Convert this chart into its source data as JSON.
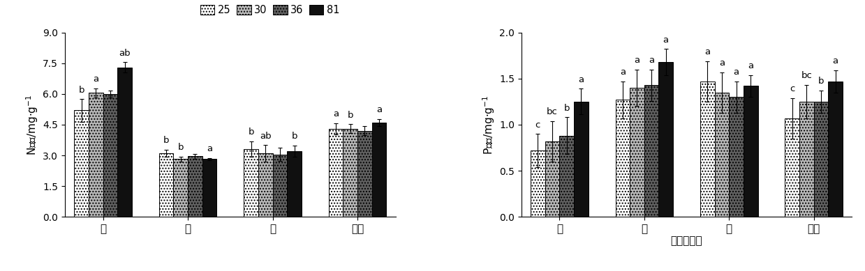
{
  "left_chart": {
    "ylabel": "N浓度/mg·g-1",
    "ylim": [
      0.0,
      9.0
    ],
    "yticks": [
      0.0,
      1.5,
      3.0,
      4.5,
      6.0,
      7.5,
      9.0
    ],
    "categories": [
      "叶",
      "茎",
      "根",
      "单株"
    ],
    "series_labels": [
      "25",
      "30",
      "36",
      "81"
    ],
    "values": [
      [
        5.2,
        3.1,
        3.3,
        4.3
      ],
      [
        6.05,
        2.82,
        3.1,
        4.3
      ],
      [
        6.0,
        2.95,
        3.05,
        4.2
      ],
      [
        7.3,
        2.82,
        3.2,
        4.6
      ]
    ],
    "errors": [
      [
        0.55,
        0.18,
        0.38,
        0.28
      ],
      [
        0.22,
        0.12,
        0.4,
        0.22
      ],
      [
        0.18,
        0.12,
        0.32,
        0.22
      ],
      [
        0.25,
        0.06,
        0.28,
        0.18
      ]
    ],
    "sig_labels": [
      [
        "b",
        "a",
        "",
        "ab"
      ],
      [
        "b",
        "b",
        "",
        "a"
      ],
      [
        "b",
        "ab",
        "",
        "b"
      ],
      [
        "a",
        "b",
        "",
        "a"
      ]
    ],
    "sig_labels_per_group": [
      [
        "b",
        "b",
        "b",
        "a"
      ],
      [
        "a",
        "b",
        "ab",
        "b"
      ],
      [
        "",
        "",
        "",
        ""
      ],
      [
        "ab",
        "a",
        "b",
        "a"
      ]
    ]
  },
  "right_chart": {
    "ylabel": "P浓度/mg·g-1",
    "xlabel": "容器苗部位",
    "ylim": [
      0.0,
      2.0
    ],
    "yticks": [
      0.0,
      0.5,
      1.0,
      1.5,
      2.0
    ],
    "categories": [
      "叶",
      "茎",
      "根",
      "单株"
    ],
    "series_labels": [
      "25",
      "30",
      "36",
      "81"
    ],
    "values": [
      [
        0.72,
        1.27,
        1.47,
        1.07
      ],
      [
        0.82,
        1.4,
        1.35,
        1.25
      ],
      [
        0.88,
        1.43,
        1.3,
        1.25
      ],
      [
        1.25,
        1.68,
        1.42,
        1.47
      ]
    ],
    "errors": [
      [
        0.18,
        0.2,
        0.22,
        0.22
      ],
      [
        0.22,
        0.2,
        0.22,
        0.18
      ],
      [
        0.2,
        0.17,
        0.17,
        0.12
      ],
      [
        0.14,
        0.14,
        0.12,
        0.12
      ]
    ],
    "sig_labels_per_group": [
      [
        "c",
        "a",
        "a",
        "c"
      ],
      [
        "bc",
        "a",
        "a",
        "bc"
      ],
      [
        "b",
        "a",
        "a",
        "b"
      ],
      [
        "a",
        "a",
        "a",
        "a"
      ]
    ]
  },
  "face_colors": [
    "white",
    "#b8b8b8",
    "#606060",
    "#101010"
  ],
  "hatches": [
    "....",
    "....",
    "....",
    ""
  ],
  "bar_width": 0.17,
  "fontsize": 11,
  "tick_fontsize": 10,
  "sig_fontsize": 10
}
